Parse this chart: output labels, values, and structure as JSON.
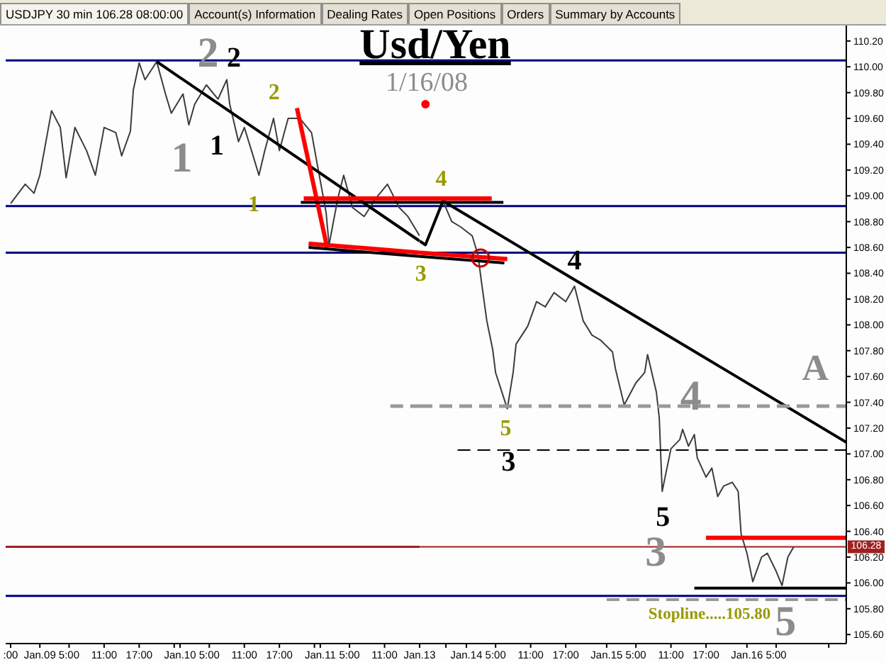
{
  "chart_data": [
    {
      "type": "line",
      "title": "Usd/Yen",
      "subtitle": "1/16/08",
      "annotations": [
        "USDJPY 30 min 106.28 08:00:00",
        "Account(s) Information",
        "Dealing Rates",
        "Open Positions",
        "Orders",
        "Summary by Accounts",
        "2",
        "1",
        "2",
        "1",
        "2",
        "1"
      ],
      "xlim": [
        "--01-08T18:09",
        "--01-11T17:00"
      ],
      "xticks": [
        {
          "value": "--01-08T19:00",
          "label": ":00"
        },
        {
          "value": "--01-09T00:00",
          "label": "Jan.09"
        },
        {
          "value": "--01-09T05:00",
          "label": "5:00"
        },
        {
          "value": "--01-09T11:00",
          "label": "11:00"
        },
        {
          "value": "--01-09T17:00",
          "label": "17:00"
        },
        {
          "value": "--01-09T23:00",
          "label": null
        },
        {
          "value": "--01-10T00:00",
          "label": "Jan.10"
        },
        {
          "value": "--01-10T05:00",
          "label": "5:00"
        },
        {
          "value": "--01-10T11:00",
          "label": "11:00"
        },
        {
          "value": "--01-10T17:00",
          "label": "17:00"
        },
        {
          "value": "--01-10T23:00",
          "label": null
        },
        {
          "value": "--01-11T00:00",
          "label": "Jan.11"
        },
        {
          "value": "--01-11T05:00",
          "label": "5:00"
        },
        {
          "value": "--01-11T11:00",
          "label": "11:00"
        }
      ],
      "ylim": [
        105.53,
        110.32
      ],
      "tick_labels": "x",
      "ref_lines": [
        {
          "axis": "y",
          "value": 110.05,
          "color": "#000080"
        },
        {
          "axis": "y",
          "value": 108.92,
          "color": "#000080"
        },
        {
          "axis": "y",
          "value": 108.56,
          "color": "#000080"
        },
        {
          "axis": "y",
          "value": 105.9,
          "color": "#000080"
        },
        {
          "axis": "y",
          "value": 106.28,
          "color": "#a02020"
        }
      ],
      "series": [
        {
          "color": "#3c3c3c",
          "x": [
            "--01-08T19:00",
            "--01-08T21:30",
            "--01-08T23:00",
            "--01-09T00:00",
            "--01-09T02:00",
            "--01-09T03:30",
            "--01-09T04:30",
            "--01-09T06:00",
            "--01-09T08:00",
            "--01-09T09:30",
            "--01-09T11:00",
            "--01-09T13:00",
            "--01-09T14:00",
            "--01-09T15:30",
            "--01-09T16:00",
            "--01-09T17:00",
            "--01-09T18:00",
            "--01-09T20:00",
            "--01-09T21:30",
            "--01-09T22:30",
            "--01-10T00:30",
            "--01-10T01:30",
            "--01-10T02:30",
            "--01-10T04:30",
            "--01-10T06:30",
            "--01-10T08:00",
            "--01-10T08:30",
            "--01-10T10:00",
            "--01-10T11:00",
            "--01-10T12:30",
            "--01-10T13:30",
            "--01-10T14:30",
            "--01-10T16:00",
            "--01-10T17:00",
            "--01-10T18:30",
            "--01-10T20:30",
            "--01-10T22:30",
            "--01-10T23:30",
            "--01-11T01:00",
            "--01-11T01:30",
            "--01-11T03:00",
            "--01-11T04:00",
            "--01-11T05:30",
            "--01-11T07:30",
            "--01-11T09:30",
            "--01-11T11:30",
            "--01-11T13:30",
            "--01-11T15:00",
            "--01-11T17:00"
          ],
          "values": [
            108.94,
            109.09,
            109.02,
            109.16,
            109.66,
            109.53,
            109.14,
            109.53,
            109.35,
            109.16,
            109.53,
            109.49,
            109.31,
            109.5,
            109.82,
            110.03,
            109.9,
            110.04,
            109.79,
            109.64,
            109.79,
            109.55,
            109.71,
            109.86,
            109.75,
            109.9,
            109.71,
            109.42,
            109.53,
            109.31,
            109.16,
            109.35,
            109.6,
            109.35,
            109.6,
            109.6,
            109.49,
            109.24,
            108.87,
            108.62,
            108.98,
            109.16,
            108.91,
            108.84,
            108.98,
            109.09,
            108.91,
            108.84,
            108.69
          ]
        },
        {
          "color": "#000000",
          "x": [
            "--01-09T20:00",
            "--01-11T17:00"
          ],
          "values": [
            110.04,
            108.65
          ]
        },
        {
          "color": "#ff0000",
          "x": [
            "--01-10T20:00",
            "--01-11T01:10"
          ],
          "values": [
            109.68,
            108.6
          ]
        },
        {
          "color": "#000000",
          "x": [
            "--01-10T20:40",
            "--01-11T17:00"
          ],
          "values": [
            108.95,
            108.95
          ]
        },
        {
          "color": "#ff0000",
          "x": [
            "--01-10T21:10",
            "--01-11T17:00"
          ],
          "values": [
            108.98,
            108.98
          ]
        },
        {
          "color": "#000000",
          "x": [
            "--01-10T22:00",
            "--01-11T17:00"
          ],
          "values": [
            108.6,
            108.53
          ]
        },
        {
          "color": "#ff0000",
          "x": [
            "--01-10T22:00",
            "--01-11T17:00"
          ],
          "values": [
            108.63,
            108.56
          ]
        },
        {
          "color": "#999999",
          "line_style": "dashed",
          "x": [
            "--01-11T12:00",
            "--01-11T17:00"
          ],
          "values": [
            107.37,
            107.37
          ]
        }
      ]
    },
    {
      "type": "line",
      "annotations": [
        "4",
        "3",
        "4",
        "5",
        "3",
        "4",
        "5",
        "3",
        "A",
        "5",
        "Stopline.....105.80"
      ],
      "xlim": [
        "--01-13T16:00",
        "--01-16T17:00"
      ],
      "xticks": [
        {
          "value": "--01-13T16:00",
          "label": "Jan.13"
        },
        {
          "value": "--01-13T20:30",
          "label": null
        },
        {
          "value": "--01-14T00:00",
          "label": "Jan.14"
        },
        {
          "value": "--01-14T05:00",
          "label": "5:00"
        },
        {
          "value": "--01-14T11:00",
          "label": "11:00"
        },
        {
          "value": "--01-14T17:00",
          "label": "17:00"
        },
        {
          "value": "--01-15T00:00",
          "label": "Jan.15"
        },
        {
          "value": "--01-15T05:00",
          "label": "5:00"
        },
        {
          "value": "--01-15T11:00",
          "label": "11:00"
        },
        {
          "value": "--01-15T17:00",
          "label": "17:00"
        },
        {
          "value": "--01-16T00:00",
          "label": "Jan.16"
        },
        {
          "value": "--01-16T05:00",
          "label": "5:00"
        },
        {
          "value": "--01-16T14:00",
          "label": null
        }
      ],
      "ylim": [
        105.53,
        110.32
      ],
      "yticks": [
        {
          "value": 105.6,
          "label": "105.60"
        },
        {
          "value": 105.8,
          "label": "105.80"
        },
        {
          "value": 106,
          "label": "106.00"
        },
        {
          "value": 106.2,
          "label": "106.20"
        },
        {
          "value": 106.4,
          "label": "106.40"
        },
        {
          "value": 106.6,
          "label": "106.60"
        },
        {
          "value": 106.8,
          "label": "106.80"
        },
        {
          "value": 107,
          "label": "107.00"
        },
        {
          "value": 107.2,
          "label": "107.20"
        },
        {
          "value": 107.4,
          "label": "107.40"
        },
        {
          "value": 107.6,
          "label": "107.60"
        },
        {
          "value": 107.8,
          "label": "107.80"
        },
        {
          "value": 108,
          "label": "108.00"
        },
        {
          "value": 108.2,
          "label": "108.20"
        },
        {
          "value": 108.4,
          "label": "108.40"
        },
        {
          "value": 108.6,
          "label": "108.60"
        },
        {
          "value": 108.8,
          "label": "108.80"
        },
        {
          "value": 109,
          "label": "109.00"
        },
        {
          "value": 109.2,
          "label": "109.20"
        },
        {
          "value": 109.4,
          "label": "109.40"
        },
        {
          "value": 109.6,
          "label": "109.60"
        },
        {
          "value": 109.8,
          "label": "109.80"
        },
        {
          "value": 110,
          "label": "110.00"
        },
        {
          "value": 110.2,
          "label": "110.20"
        }
      ],
      "ref_lines": [
        {
          "axis": "y",
          "value": 110.05,
          "color": "#000080"
        },
        {
          "axis": "y",
          "value": 108.92,
          "color": "#000080"
        },
        {
          "axis": "y",
          "value": 108.56,
          "color": "#000080"
        },
        {
          "axis": "y",
          "value": 105.9,
          "color": "#000080"
        },
        {
          "axis": "y",
          "value": 106.28,
          "label": "106.28",
          "color": "#a02020"
        }
      ],
      "series": [
        {
          "color": "#3c3c3c",
          "x": [
            "--01-13T17:00",
            "--01-13T19:30",
            "--01-13T20:00",
            "--01-13T21:30",
            "--01-13T23:00",
            "--01-14T01:00",
            "--01-14T02:00",
            "--01-14T02:30",
            "--01-14T03:30",
            "--01-14T04:30",
            "--01-14T05:00",
            "--01-14T07:00",
            "--01-14T08:00",
            "--01-14T08:30",
            "--01-14T10:30",
            "--01-14T12:00",
            "--01-14T13:30",
            "--01-14T15:00",
            "--01-14T17:00",
            "--01-14T18:30",
            "--01-14T20:00",
            "--01-14T21:30",
            "--01-14T23:00",
            "--01-15T01:00",
            "--01-15T01:30",
            "--01-15T03:00",
            "--01-15T05:00",
            "--01-15T06:30",
            "--01-15T07:00",
            "--01-15T08:30",
            "--01-15T09:00",
            "--01-15T09:30",
            "--01-15T10:00",
            "--01-15T11:00",
            "--01-15T12:30",
            "--01-15T13:00",
            "--01-15T14:00",
            "--01-15T15:00",
            "--01-15T15:30",
            "--01-15T17:00",
            "--01-15T18:00",
            "--01-15T19:00",
            "--01-15T20:00",
            "--01-15T21:30",
            "--01-15T22:30",
            "--01-15T23:00",
            "--01-16T00:00",
            "--01-16T01:00",
            "--01-16T02:30",
            "--01-16T03:30",
            "--01-16T05:00",
            "--01-16T06:00",
            "--01-16T07:00",
            "--01-16T08:00"
          ],
          "values": [
            108.62,
            108.91,
            108.96,
            108.8,
            108.76,
            108.69,
            108.54,
            108.36,
            108.03,
            107.81,
            107.63,
            107.35,
            107.63,
            107.85,
            107.99,
            108.18,
            108.14,
            108.25,
            108.18,
            108.3,
            108.03,
            107.92,
            107.88,
            107.79,
            107.66,
            107.38,
            107.55,
            107.63,
            107.77,
            107.48,
            107.28,
            106.71,
            106.82,
            107.04,
            107.11,
            107.19,
            107.06,
            107.15,
            106.97,
            106.82,
            106.89,
            106.67,
            106.75,
            106.78,
            106.71,
            106.38,
            106.23,
            106.01,
            106.2,
            106.23,
            106.09,
            105.98,
            106.2,
            106.28
          ]
        },
        {
          "color": "#000000",
          "x": [
            "--01-13T16:00",
            "--01-13T17:00",
            "--01-13T20:00",
            "--01-16T17:00"
          ],
          "values": [
            108.65,
            108.62,
            108.96,
            107.09
          ]
        },
        {
          "color": "#000000",
          "x": [
            "--01-13T16:00",
            "--01-14T06:20"
          ],
          "values": [
            108.95,
            108.95
          ]
        },
        {
          "color": "#ff0000",
          "x": [
            "--01-13T16:00",
            "--01-14T04:20"
          ],
          "values": [
            108.98,
            108.98
          ]
        },
        {
          "color": "#000000",
          "x": [
            "--01-13T16:00",
            "--01-14T06:30"
          ],
          "values": [
            108.53,
            108.48
          ]
        },
        {
          "color": "#ff0000",
          "x": [
            "--01-13T16:00",
            "--01-14T07:00"
          ],
          "values": [
            108.56,
            108.51
          ]
        },
        {
          "color": "#999999",
          "line_style": "dashed",
          "x": [
            "--01-13T16:00",
            "--01-16T17:00"
          ],
          "values": [
            107.37,
            107.37
          ]
        },
        {
          "color": "#000000",
          "line_style": "dashed",
          "x": [
            "--01-13T22:30",
            "--01-16T17:00"
          ],
          "values": [
            107.03,
            107.03
          ]
        },
        {
          "color": "#999999",
          "line_style": "dashed",
          "x": [
            "--01-15T00:00",
            "--01-16T17:00"
          ],
          "values": [
            105.87,
            105.87
          ]
        },
        {
          "color": "#ff0000",
          "x": [
            "--01-15T17:00",
            "--01-16T17:00"
          ],
          "values": [
            106.35,
            106.35
          ]
        },
        {
          "color": "#000000",
          "x": [
            "--01-15T15:00",
            "--01-16T17:00"
          ],
          "values": [
            105.96,
            105.96
          ]
        },
        {
          "type": "scatter",
          "color": "#ff0000",
          "x": [
            "--01-13T17:00"
          ],
          "values": [
            109.71
          ]
        }
      ]
    }
  ]
}
